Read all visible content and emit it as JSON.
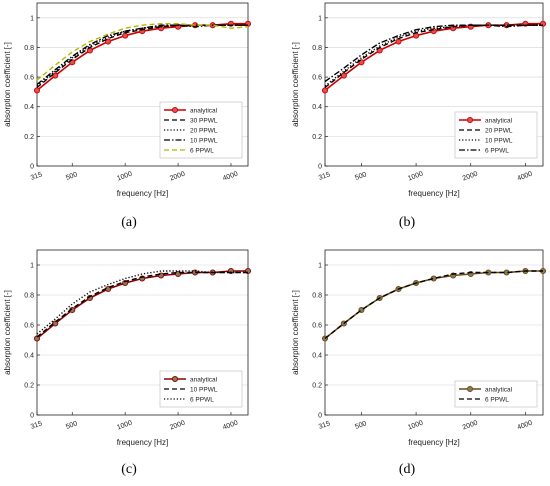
{
  "chart_data": [
    {
      "type": "line",
      "panel_label": "(a)",
      "xlabel": "frequency [Hz]",
      "ylabel": "absorption coefficient [-]",
      "x_scale": "log",
      "xlim": [
        315,
        5000
      ],
      "ylim": [
        0,
        1.1
      ],
      "x_ticks": [
        315,
        500,
        1000,
        2000,
        4000
      ],
      "y_ticks": [
        0,
        0.2,
        0.4,
        0.6,
        0.8,
        1
      ],
      "legend_position": "lower-right",
      "x": [
        315,
        400,
        500,
        630,
        800,
        1000,
        1250,
        1600,
        2000,
        2500,
        3150,
        4000,
        5000
      ],
      "series": [
        {
          "name": "analytical",
          "color": "#cc0000",
          "style": "solid-marker",
          "values": [
            0.51,
            0.61,
            0.7,
            0.78,
            0.84,
            0.88,
            0.91,
            0.93,
            0.94,
            0.95,
            0.95,
            0.96,
            0.96
          ]
        },
        {
          "name": "30 PPWL",
          "color": "#000000",
          "style": "dashed",
          "values": [
            0.53,
            0.63,
            0.72,
            0.8,
            0.86,
            0.9,
            0.92,
            0.94,
            0.95,
            0.95,
            0.95,
            0.95,
            0.95
          ]
        },
        {
          "name": "20 PPWL",
          "color": "#000000",
          "style": "dotted",
          "values": [
            0.54,
            0.64,
            0.73,
            0.81,
            0.87,
            0.91,
            0.93,
            0.94,
            0.95,
            0.95,
            0.95,
            0.95,
            0.95
          ]
        },
        {
          "name": "10 PPWL",
          "color": "#000000",
          "style": "dashdot",
          "values": [
            0.55,
            0.65,
            0.74,
            0.82,
            0.88,
            0.91,
            0.93,
            0.95,
            0.95,
            0.94,
            0.95,
            0.95,
            0.95
          ]
        },
        {
          "name": "6 PPWL",
          "color": "#b5b800",
          "style": "dashed",
          "values": [
            0.58,
            0.68,
            0.77,
            0.84,
            0.89,
            0.93,
            0.95,
            0.96,
            0.96,
            0.95,
            0.95,
            0.93,
            0.94
          ]
        }
      ]
    },
    {
      "type": "line",
      "panel_label": "(b)",
      "xlabel": "frequency [Hz]",
      "ylabel": "absorption coefficient [-]",
      "x_scale": "log",
      "xlim": [
        315,
        5000
      ],
      "ylim": [
        0,
        1.1
      ],
      "x_ticks": [
        315,
        500,
        1000,
        2000,
        4000
      ],
      "y_ticks": [
        0,
        0.2,
        0.4,
        0.6,
        0.8,
        1
      ],
      "legend_position": "lower-right",
      "x": [
        315,
        400,
        500,
        630,
        800,
        1000,
        1250,
        1600,
        2000,
        2500,
        3150,
        4000,
        5000
      ],
      "series": [
        {
          "name": "analytical",
          "color": "#cc0000",
          "style": "solid-marker",
          "values": [
            0.51,
            0.61,
            0.7,
            0.78,
            0.84,
            0.88,
            0.91,
            0.93,
            0.94,
            0.95,
            0.95,
            0.96,
            0.96
          ]
        },
        {
          "name": "20 PPWL",
          "color": "#000000",
          "style": "dashed",
          "values": [
            0.53,
            0.63,
            0.72,
            0.8,
            0.86,
            0.9,
            0.92,
            0.94,
            0.95,
            0.95,
            0.95,
            0.95,
            0.95
          ]
        },
        {
          "name": "10 PPWL",
          "color": "#000000",
          "style": "dotted",
          "values": [
            0.54,
            0.64,
            0.73,
            0.81,
            0.87,
            0.91,
            0.93,
            0.94,
            0.95,
            0.95,
            0.95,
            0.95,
            0.95
          ]
        },
        {
          "name": "6 PPWL",
          "color": "#000000",
          "style": "dashdot",
          "values": [
            0.57,
            0.66,
            0.75,
            0.83,
            0.88,
            0.92,
            0.94,
            0.95,
            0.95,
            0.95,
            0.94,
            0.95,
            0.95
          ]
        }
      ]
    },
    {
      "type": "line",
      "panel_label": "(c)",
      "xlabel": "frequency [Hz]",
      "ylabel": "absorption coefficient [-]",
      "x_scale": "log",
      "xlim": [
        315,
        5000
      ],
      "ylim": [
        0,
        1.1
      ],
      "x_ticks": [
        315,
        500,
        1000,
        2000,
        4000
      ],
      "y_ticks": [
        0,
        0.2,
        0.4,
        0.6,
        0.8,
        1
      ],
      "legend_position": "lower-right",
      "x": [
        315,
        400,
        500,
        630,
        800,
        1000,
        1250,
        1600,
        2000,
        2500,
        3150,
        4000,
        5000
      ],
      "series": [
        {
          "name": "analytical",
          "color": "#8b0000",
          "style": "solid-marker",
          "values": [
            0.51,
            0.61,
            0.7,
            0.78,
            0.84,
            0.88,
            0.91,
            0.93,
            0.94,
            0.95,
            0.95,
            0.96,
            0.96
          ]
        },
        {
          "name": "10 PPWL",
          "color": "#000000",
          "style": "dashed",
          "values": [
            0.52,
            0.62,
            0.71,
            0.79,
            0.85,
            0.89,
            0.92,
            0.94,
            0.95,
            0.95,
            0.95,
            0.95,
            0.95
          ]
        },
        {
          "name": "6 PPWL",
          "color": "#000000",
          "style": "dotted",
          "values": [
            0.54,
            0.64,
            0.74,
            0.82,
            0.87,
            0.91,
            0.94,
            0.96,
            0.96,
            0.96,
            0.95,
            0.95,
            0.95
          ]
        }
      ]
    },
    {
      "type": "line",
      "panel_label": "(d)",
      "xlabel": "frequency [Hz]",
      "ylabel": "absorption coefficient [-]",
      "x_scale": "log",
      "xlim": [
        315,
        5000
      ],
      "ylim": [
        0,
        1.1
      ],
      "x_ticks": [
        315,
        500,
        1000,
        2000,
        4000
      ],
      "y_ticks": [
        0,
        0.2,
        0.4,
        0.6,
        0.8,
        1
      ],
      "legend_position": "lower-right",
      "x": [
        315,
        400,
        500,
        630,
        800,
        1000,
        1250,
        1600,
        2000,
        2500,
        3150,
        4000,
        5000
      ],
      "series": [
        {
          "name": "analytical",
          "color": "#6b4a1a",
          "style": "solid-marker",
          "values": [
            0.51,
            0.61,
            0.7,
            0.78,
            0.84,
            0.88,
            0.91,
            0.93,
            0.94,
            0.95,
            0.95,
            0.96,
            0.96
          ]
        },
        {
          "name": "6 PPWL",
          "color": "#000000",
          "style": "dashed",
          "values": [
            0.51,
            0.61,
            0.7,
            0.78,
            0.84,
            0.88,
            0.91,
            0.94,
            0.95,
            0.95,
            0.95,
            0.96,
            0.96
          ]
        }
      ]
    }
  ]
}
